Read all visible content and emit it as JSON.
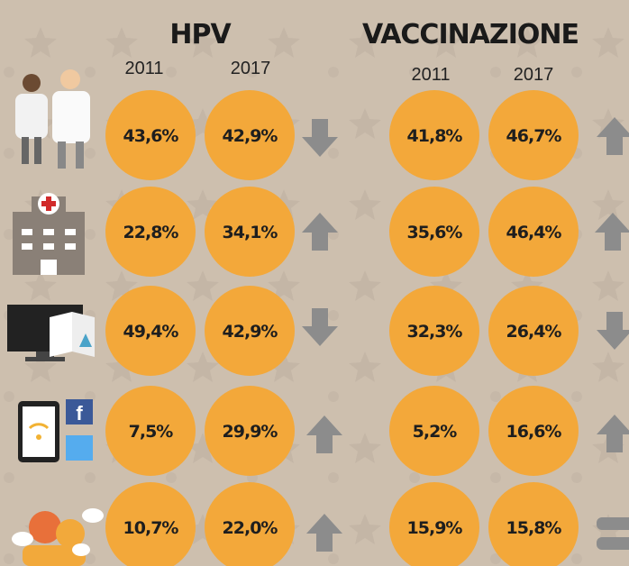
{
  "hpv": {
    "title": "HPV",
    "years": [
      "2011",
      "2017"
    ]
  },
  "vaccinazione": {
    "title": "VACCINAZIONE",
    "years": [
      "2011",
      "2017"
    ]
  },
  "rows": [
    {
      "hpv": [
        "43,6%",
        "42,9%"
      ],
      "vaccinazione": [
        "41,8%",
        "46,7%"
      ]
    },
    {
      "hpv": [
        "22,8%",
        "34,1%"
      ],
      "vaccinazione": [
        "35,6%",
        "46,4%"
      ]
    },
    {
      "hpv": [
        "49,4%",
        "42,9%"
      ],
      "vaccinazione": [
        "32,3%",
        "26,4%"
      ]
    },
    {
      "hpv": [
        "7,5%",
        "29,9%"
      ],
      "vaccinazione": [
        "5,2%",
        "16,6%"
      ]
    },
    {
      "hpv": [
        "10,7%",
        "22,0%"
      ],
      "vaccinazione": [
        "15,9%",
        "15,8%"
      ]
    }
  ]
}
